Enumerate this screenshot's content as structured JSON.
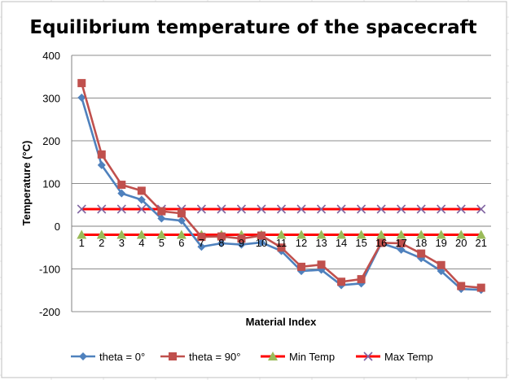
{
  "chart_data": {
    "type": "line",
    "title": "Equilibrium temperature of the spacecraft",
    "xlabel": "Material Index",
    "ylabel": "Temperature (°C)",
    "ylim": [
      -200,
      400
    ],
    "yticks": [
      -200,
      -100,
      0,
      100,
      200,
      300,
      400
    ],
    "categories": [
      "1",
      "2",
      "3",
      "4",
      "5",
      "6",
      "7",
      "8",
      "9",
      "10",
      "11",
      "12",
      "13",
      "14",
      "15",
      "16",
      "17",
      "18",
      "19",
      "20",
      "21"
    ],
    "grid": true,
    "legend_position": "bottom",
    "series": [
      {
        "name": "theta = 0°",
        "color": "#4f81bd",
        "marker": "diamond",
        "values": [
          301,
          143,
          77,
          62,
          18,
          13,
          -48,
          -40,
          -43,
          -38,
          -58,
          -105,
          -102,
          -138,
          -134,
          -40,
          -55,
          -75,
          -105,
          -147,
          -149
        ]
      },
      {
        "name": "theta = 90°",
        "color": "#c0504d",
        "marker": "square",
        "values": [
          335,
          168,
          97,
          83,
          35,
          30,
          -25,
          -24,
          -29,
          -22,
          -50,
          -95,
          -90,
          -130,
          -124,
          -39,
          -40,
          -64,
          -91,
          -140,
          -144
        ]
      },
      {
        "name": "Min Temp",
        "color": "#ff0000",
        "marker": "triangle",
        "marker_color": "#9bbb59",
        "values": [
          -20,
          -20,
          -20,
          -20,
          -20,
          -20,
          -20,
          -20,
          -20,
          -20,
          -20,
          -20,
          -20,
          -20,
          -20,
          -20,
          -20,
          -20,
          -20,
          -20,
          -20
        ]
      },
      {
        "name": "Max Temp",
        "color": "#ff0000",
        "marker": "x",
        "marker_color": "#8064a2",
        "values": [
          40,
          40,
          40,
          40,
          40,
          40,
          40,
          40,
          40,
          40,
          40,
          40,
          40,
          40,
          40,
          40,
          40,
          40,
          40,
          40,
          40
        ]
      }
    ]
  }
}
